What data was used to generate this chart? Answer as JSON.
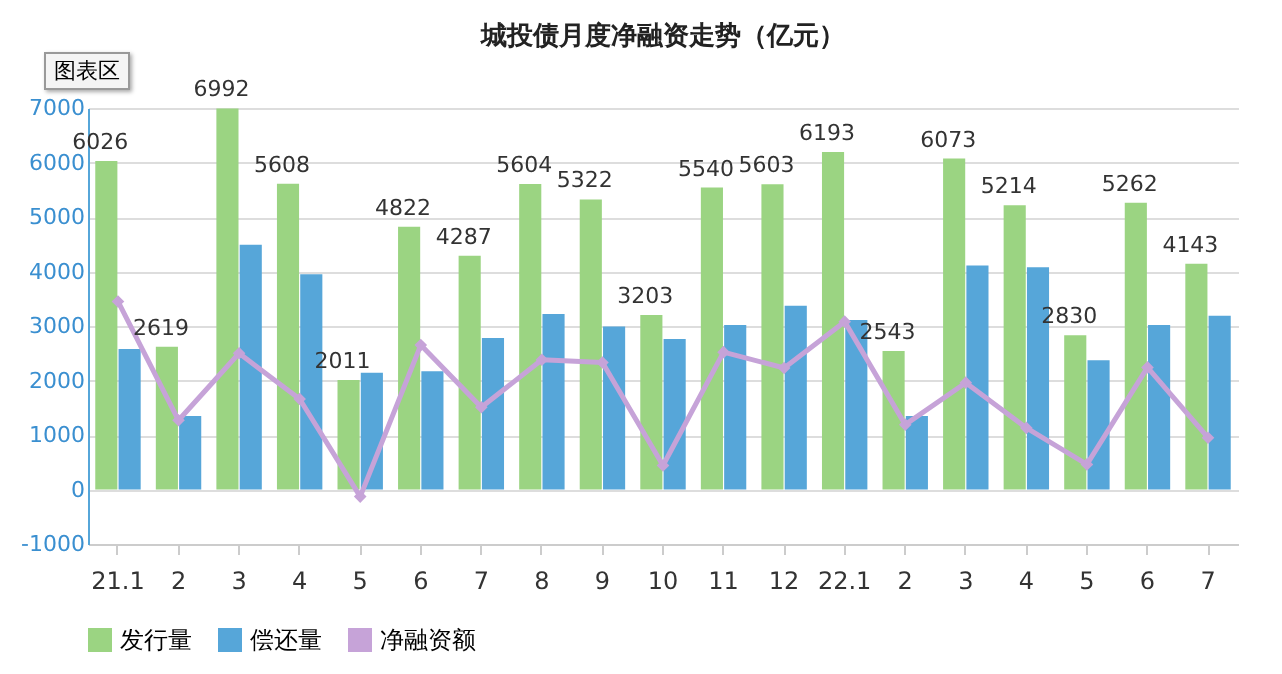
{
  "chart_data": {
    "type": "bar",
    "title": "城投债月度净融资走势（亿元）",
    "annotations": [
      "图表区"
    ],
    "categories": [
      "21.1",
      "2",
      "3",
      "4",
      "5",
      "6",
      "7",
      "8",
      "9",
      "10",
      "11",
      "12",
      "22.1",
      "2",
      "3",
      "4",
      "5",
      "6",
      "7"
    ],
    "series": [
      {
        "name": "发行量",
        "color": "#9bd482",
        "values": [
          6026,
          2619,
          6992,
          5608,
          2011,
          4822,
          4287,
          5604,
          5322,
          3203,
          5540,
          5603,
          6193,
          2543,
          6073,
          5214,
          2830,
          5262,
          4143
        ],
        "value_labels": [
          "6026",
          "2619",
          "6992",
          "5608",
          "2011",
          "4822",
          "4287",
          "5604",
          "5322",
          "3203",
          "5540",
          "5603",
          "6193",
          "2543",
          "6073",
          "5214",
          "2830",
          "5262",
          "4143"
        ]
      },
      {
        "name": "偿还量",
        "color": "#56a6d9",
        "values": [
          2580,
          1350,
          4490,
          3950,
          2140,
          2170,
          2780,
          3220,
          2990,
          2760,
          3020,
          3370,
          3110,
          1350,
          4110,
          4080,
          2370,
          3020,
          3190
        ]
      },
      {
        "name": "净融资额",
        "type": "line",
        "color": "#c6a3d8",
        "values": [
          3450,
          1270,
          2500,
          1660,
          -130,
          2650,
          1510,
          2380,
          2330,
          440,
          2520,
          2230,
          3080,
          1190,
          1960,
          1130,
          460,
          2240,
          950
        ]
      }
    ],
    "ylim": [
      -1000,
      7000
    ],
    "yticks": [
      -1000,
      0,
      1000,
      2000,
      3000,
      4000,
      5000,
      6000,
      7000
    ],
    "grid": "y",
    "legend": "bottom",
    "marker": "diamond"
  }
}
